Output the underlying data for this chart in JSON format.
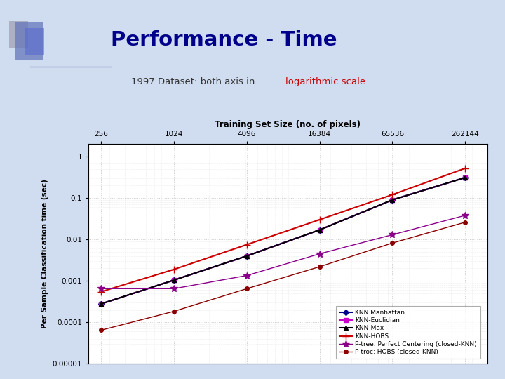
{
  "title": "Performance - Time",
  "subtitle_black": "1997 Dataset: both axis in ",
  "subtitle_red": "logarithmic scale",
  "xlabel": "Training Set Size (no. of pixels)",
  "ylabel": "Per Sample Classification time (sec)",
  "x_values": [
    256,
    1024,
    4096,
    16384,
    65536,
    262144
  ],
  "x_tick_labels": [
    "256",
    "1024",
    "4096",
    "16384",
    "65536",
    "262144"
  ],
  "series": [
    {
      "label": "KNN Manhattan",
      "color": "#00008B",
      "marker": "D",
      "markersize": 4,
      "linewidth": 1.5,
      "y_values": [
        0.00028,
        0.00105,
        0.004,
        0.017,
        0.09,
        0.31
      ]
    },
    {
      "label": "KNN-Euclidian",
      "color": "#CC00CC",
      "marker": "s",
      "markersize": 4,
      "linewidth": 1.5,
      "y_values": [
        0.00028,
        0.00105,
        0.004,
        0.017,
        0.09,
        0.31
      ]
    },
    {
      "label": "KNN-Max",
      "color": "#000000",
      "marker": "^",
      "markersize": 4,
      "linewidth": 1.5,
      "y_values": [
        0.00028,
        0.00105,
        0.004,
        0.017,
        0.09,
        0.31
      ]
    },
    {
      "label": "KNN-HOBS",
      "color": "#CC0000",
      "marker": "+",
      "markersize": 7,
      "linewidth": 1.5,
      "y_values": [
        0.00055,
        0.0019,
        0.0075,
        0.03,
        0.12,
        0.52
      ]
    },
    {
      "label": "P-tree: Perfect Centering (closed-KNN)",
      "color": "#8B008B",
      "marker": "*",
      "markersize": 7,
      "linewidth": 1.0,
      "y_values": [
        0.00065,
        0.00065,
        0.00135,
        0.0045,
        0.013,
        0.038
      ]
    },
    {
      "label": "P-troc: HOBS (closed-KNN)",
      "color": "#8B0000",
      "marker": "o",
      "markersize": 4,
      "linewidth": 1.0,
      "y_values": [
        6.5e-05,
        0.000185,
        0.00065,
        0.0022,
        0.0082,
        0.026
      ]
    }
  ],
  "ylim": [
    1e-05,
    2.0
  ],
  "xlim": [
    200,
    400000
  ],
  "background_slide": "#D0DCF0",
  "background_plot": "#FFFFFF",
  "grid_color": "#CCCCCC",
  "title_color": "#00008B",
  "subtitle_color": "#333333",
  "subtitle_red_color": "#CC0000"
}
